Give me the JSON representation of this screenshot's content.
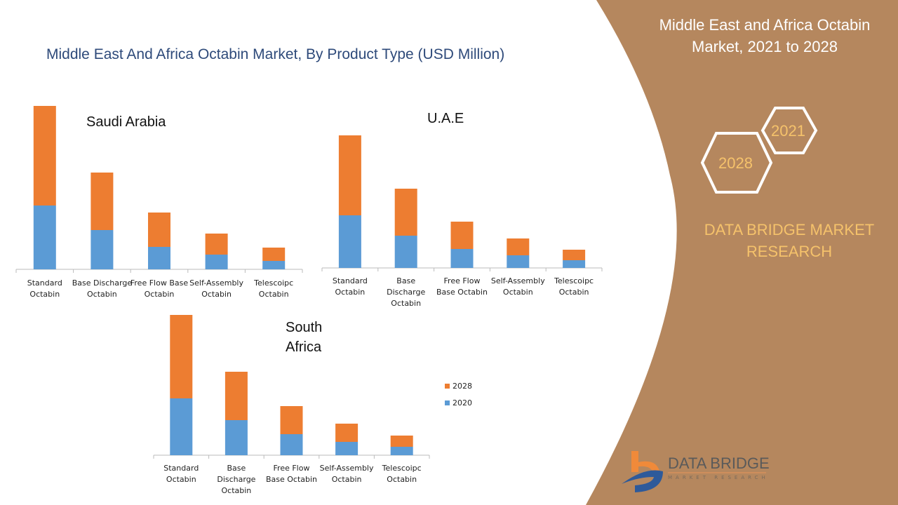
{
  "title": "Middle East And Africa Octabin Market, By Product Type (USD Million)",
  "side_panel": {
    "title": "Middle East and Africa Octabin Market, 2021 to 2028",
    "hex_years": [
      "2021",
      "2028"
    ],
    "brand": "DATA BRIDGE MARKET RESEARCH",
    "logo_text": "DATA BRIDGE",
    "logo_sub": "MARKET RESEARCH",
    "color": "#B5875E"
  },
  "colors": {
    "2028": "#ED7D31",
    "2020": "#5B9BD5"
  },
  "legend": [
    "2028",
    "2020"
  ],
  "chart_data": [
    {
      "type": "bar",
      "stacked": true,
      "title": "Saudi Arabia",
      "categories": [
        "Standard Octabin",
        "Base Discharge Octabin",
        "Free Flow Base Octabin",
        "Self-Assembly Octabin",
        "Telescoipc Octabin"
      ],
      "series": [
        {
          "name": "2020",
          "values": [
            91,
            56,
            32,
            21,
            12
          ]
        },
        {
          "name": "2028",
          "values": [
            142,
            82,
            49,
            30,
            19
          ]
        }
      ]
    },
    {
      "type": "bar",
      "stacked": true,
      "title": "U.A.E",
      "categories": [
        "Standard Octabin",
        "Base Discharge Octabin",
        "Free Flow Base Octabin",
        "Self-Assembly Octabin",
        "Telescoipc Octabin"
      ],
      "series": [
        {
          "name": "2020",
          "values": [
            75,
            46,
            27,
            18,
            11
          ]
        },
        {
          "name": "2028",
          "values": [
            114,
            67,
            39,
            24,
            15
          ]
        }
      ]
    },
    {
      "type": "bar",
      "stacked": true,
      "title": "South Africa",
      "categories": [
        "Standard Octabin",
        "Base Discharge Octabin",
        "Free Flow Base Octabin",
        "Self-Assembly Octabin",
        "Telescoipc Octabin"
      ],
      "series": [
        {
          "name": "2020",
          "values": [
            81,
            50,
            30,
            19,
            12
          ]
        },
        {
          "name": "2028",
          "values": [
            119,
            69,
            40,
            26,
            16
          ]
        }
      ]
    }
  ]
}
